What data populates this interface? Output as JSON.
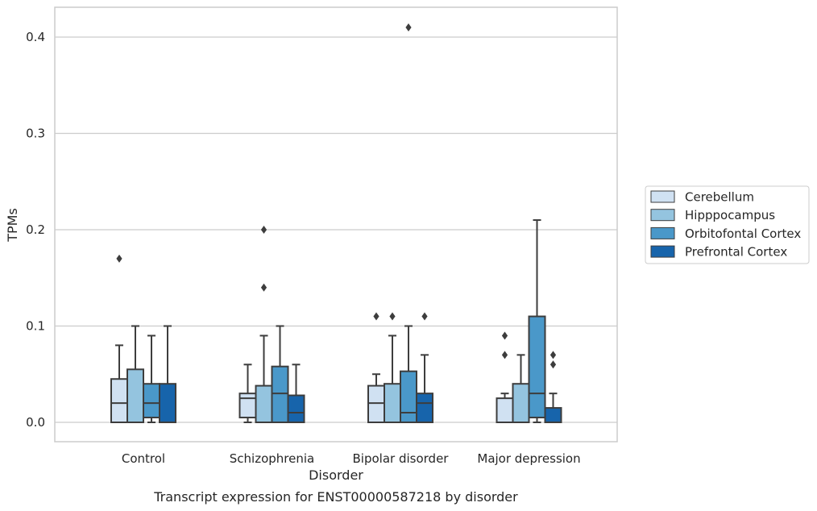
{
  "chart_data": {
    "type": "box",
    "title": "Transcript expression for ENST00000587218 by disorder",
    "xlabel": "Disorder",
    "ylabel": "TPMs",
    "ylim": [
      -0.02,
      0.43
    ],
    "yticks": [
      "0.0",
      "0.1",
      "0.2",
      "0.3",
      "0.4"
    ],
    "grid": "horizontal",
    "legend_position": "center-right",
    "categories": [
      "Control",
      "Schizophrenia",
      "Bipolar disorder",
      "Major depression"
    ],
    "series": [
      {
        "name": "Cerebellum",
        "color": "#d0e1f2",
        "boxes": [
          {
            "q1": 0.0,
            "median": 0.02,
            "q3": 0.045,
            "whisker_low": 0.0,
            "whisker_high": 0.08,
            "outliers": [
              0.17
            ]
          },
          {
            "q1": 0.005,
            "median": 0.025,
            "q3": 0.03,
            "whisker_low": 0.0,
            "whisker_high": 0.06,
            "outliers": []
          },
          {
            "q1": 0.0,
            "median": 0.02,
            "q3": 0.038,
            "whisker_low": 0.0,
            "whisker_high": 0.05,
            "outliers": [
              0.11
            ]
          },
          {
            "q1": 0.0,
            "median": 0.0,
            "q3": 0.025,
            "whisker_low": 0.0,
            "whisker_high": 0.03,
            "outliers": [
              0.07,
              0.09
            ]
          }
        ]
      },
      {
        "name": "Hipppocampus",
        "color": "#94c4df",
        "boxes": [
          {
            "q1": 0.0,
            "median": 0.0,
            "q3": 0.055,
            "whisker_low": 0.0,
            "whisker_high": 0.1,
            "outliers": []
          },
          {
            "q1": 0.0,
            "median": 0.0,
            "q3": 0.038,
            "whisker_low": 0.0,
            "whisker_high": 0.09,
            "outliers": [
              0.14,
              0.2
            ]
          },
          {
            "q1": 0.0,
            "median": 0.0,
            "q3": 0.04,
            "whisker_low": 0.0,
            "whisker_high": 0.09,
            "outliers": [
              0.11
            ]
          },
          {
            "q1": 0.0,
            "median": 0.0,
            "q3": 0.04,
            "whisker_low": 0.0,
            "whisker_high": 0.07,
            "outliers": []
          }
        ]
      },
      {
        "name": "Orbitofontal Cortex",
        "color": "#4a98c9",
        "boxes": [
          {
            "q1": 0.005,
            "median": 0.02,
            "q3": 0.04,
            "whisker_low": 0.0,
            "whisker_high": 0.09,
            "outliers": []
          },
          {
            "q1": 0.0,
            "median": 0.03,
            "q3": 0.058,
            "whisker_low": 0.0,
            "whisker_high": 0.1,
            "outliers": []
          },
          {
            "q1": 0.0,
            "median": 0.01,
            "q3": 0.053,
            "whisker_low": 0.0,
            "whisker_high": 0.1,
            "outliers": [
              0.41
            ]
          },
          {
            "q1": 0.005,
            "median": 0.03,
            "q3": 0.11,
            "whisker_low": 0.0,
            "whisker_high": 0.21,
            "outliers": []
          }
        ]
      },
      {
        "name": "Prefrontal Cortex",
        "color": "#1764ab",
        "boxes": [
          {
            "q1": 0.0,
            "median": 0.0,
            "q3": 0.04,
            "whisker_low": 0.0,
            "whisker_high": 0.1,
            "outliers": []
          },
          {
            "q1": 0.0,
            "median": 0.01,
            "q3": 0.028,
            "whisker_low": 0.0,
            "whisker_high": 0.06,
            "outliers": []
          },
          {
            "q1": 0.0,
            "median": 0.02,
            "q3": 0.03,
            "whisker_low": 0.0,
            "whisker_high": 0.07,
            "outliers": [
              0.11
            ]
          },
          {
            "q1": 0.0,
            "median": 0.0,
            "q3": 0.015,
            "whisker_low": 0.0,
            "whisker_high": 0.03,
            "outliers": [
              0.06,
              0.07
            ]
          }
        ]
      }
    ]
  }
}
